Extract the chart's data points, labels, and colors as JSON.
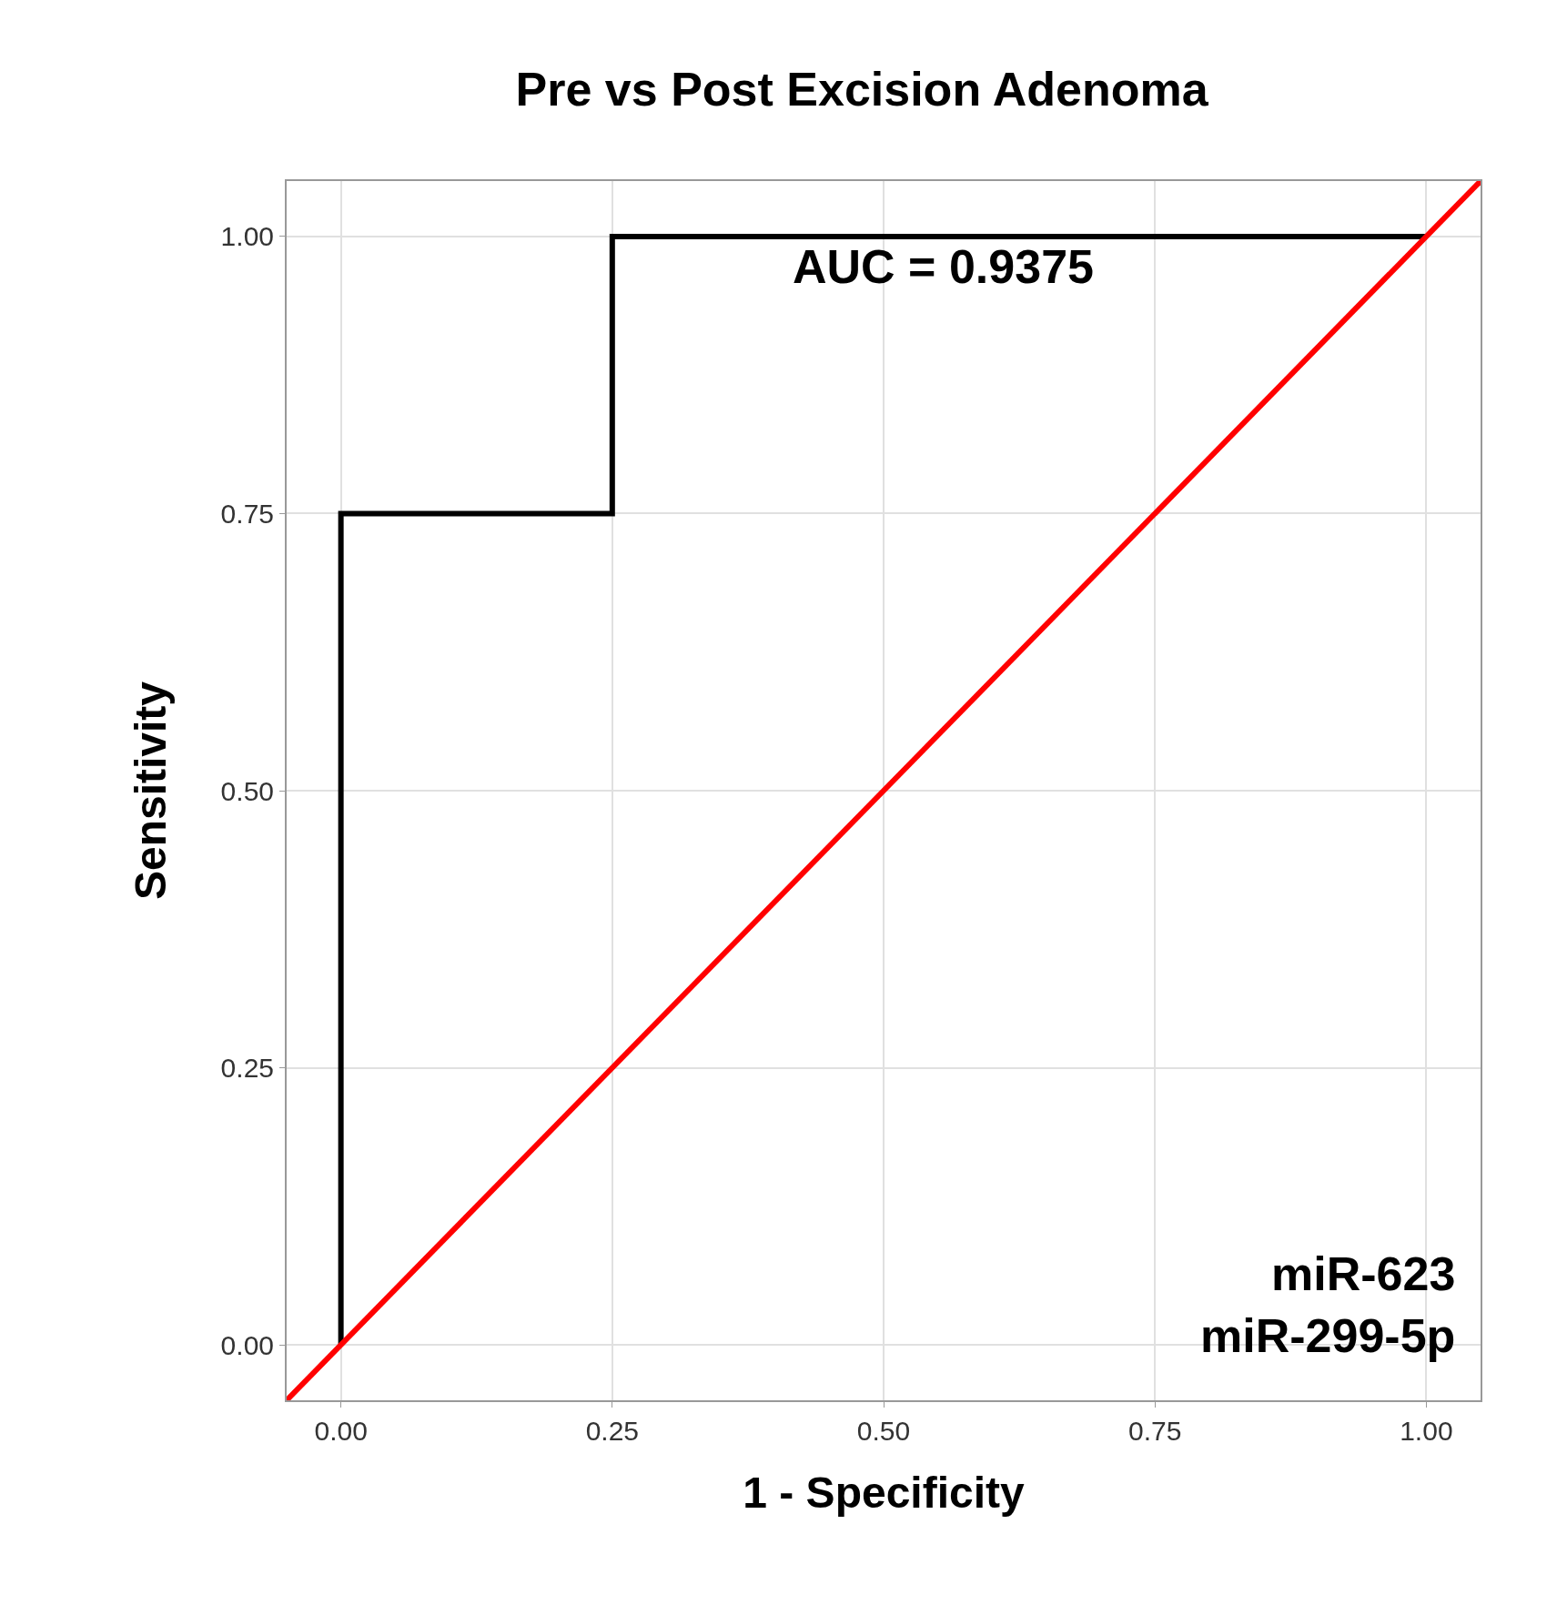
{
  "chart_data": {
    "type": "line",
    "title": "Pre vs Post Excision Adenoma",
    "xlabel": "1 - Specificity",
    "ylabel": "Sensitivity",
    "series": [
      {
        "x": [
          0,
          0,
          0.25,
          0.25,
          1
        ],
        "values": [
          0,
          0.75,
          0.75,
          1,
          1
        ],
        "color": "#000000"
      },
      {
        "x": [
          -0.05,
          1.05
        ],
        "values": [
          -0.05,
          1.05
        ],
        "color": "#ff0000"
      }
    ],
    "annotations": [
      "AUC = 0.9375",
      "miR-623\nmiR-299-5p"
    ],
    "xlim": [
      -0.05,
      1.05
    ],
    "ylim": [
      -0.05,
      1.05
    ],
    "xticks": [
      {
        "value": 0,
        "label": "0.00"
      },
      {
        "value": 0.25,
        "label": "0.25"
      },
      {
        "value": 0.5,
        "label": "0.50"
      },
      {
        "value": 0.75,
        "label": "0.75"
      },
      {
        "value": 1,
        "label": "1.00"
      }
    ],
    "yticks": [
      {
        "value": 0,
        "label": "0.00"
      },
      {
        "value": 0.25,
        "label": "0.25"
      },
      {
        "value": 0.5,
        "label": "0.50"
      },
      {
        "value": 0.75,
        "label": "0.75"
      },
      {
        "value": 1,
        "label": "1.00"
      }
    ],
    "grid": true,
    "line_style": "solid",
    "marker": "none"
  }
}
